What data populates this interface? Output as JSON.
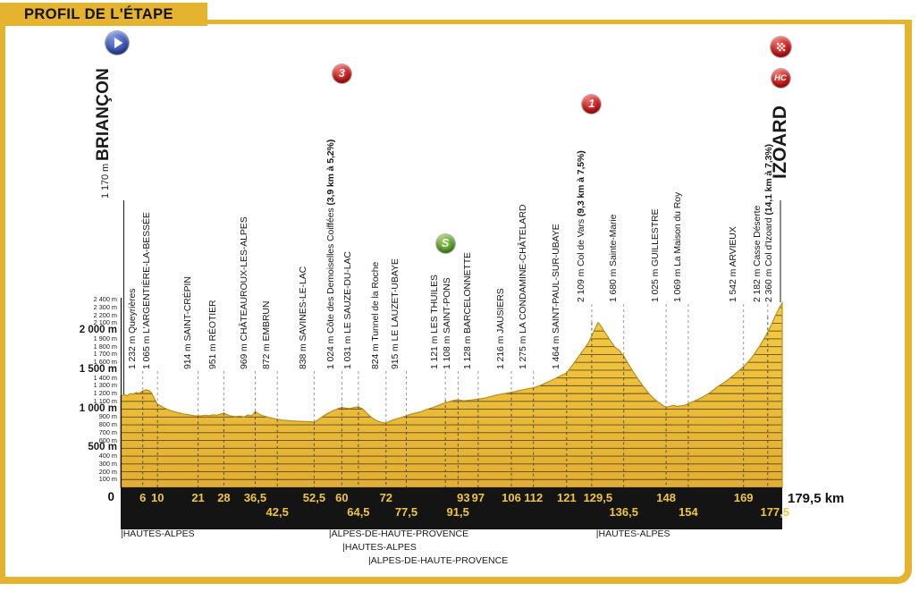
{
  "page_title": "PROFIL DE L'ÉTAPE",
  "colors": {
    "accent_yellow": "#E6B32E",
    "profile_yellow": "#F2C83E",
    "bar_black": "#141414",
    "km_label_yellow": "#F0C63C",
    "badge_red": "#C8191B",
    "badge_green": "#61A22F",
    "badge_blue": "#3A57B5"
  },
  "start": {
    "km_label": "0",
    "km": 0,
    "elevation_m": 1170,
    "elevation_label": "1 170 m",
    "name": "BRIANÇON",
    "icon": "start-play-badge"
  },
  "finish": {
    "big_label": "IZOARD",
    "total_label": "179,5 km",
    "icons": [
      "finish-checkered-flag-badge",
      "hors-categorie-badge"
    ],
    "hc_label": "HC"
  },
  "badge_labels": {
    "cat3": "3",
    "cat1": "1",
    "sprint": "S",
    "hc": "HC"
  },
  "chart_data": {
    "type": "area",
    "title": "PROFIL DE L'ÉTAPE — Briançon → Izoard",
    "x_unit": "km",
    "y_unit": "m",
    "xlim": [
      0,
      179.5
    ],
    "ylim": [
      0,
      2400
    ],
    "grid": "horizontal-inside-profile",
    "y_tick_labels": [
      "100 m",
      "200 m",
      "300 m",
      "400 m",
      "500 m",
      "600 m",
      "700 m",
      "800 m",
      "900 m",
      "1 000 m",
      "1 100 m",
      "1 200 m",
      "1 300 m",
      "1 400 m",
      "1 500 m",
      "1 600 m",
      "1 700 m",
      "1 800 m",
      "1 900 m",
      "2 000 m",
      "2 100 m",
      "2 200 m",
      "2 300 m",
      "2 400 m"
    ],
    "waypoints": [
      {
        "km": 6,
        "elev": 1232,
        "elev_label": "1 232 m",
        "name": "Queyrières",
        "tier": "A",
        "km_label": "6",
        "km_row": 1
      },
      {
        "km": 10,
        "elev": 1065,
        "elev_label": "1 065 m",
        "name": "L'ARGENTIÈRE-LA-BESSÉE",
        "tier": "A",
        "km_label": "10",
        "km_row": 1
      },
      {
        "km": 21,
        "elev": 914,
        "elev_label": "914 m",
        "name": "SAINT-CRÉPIN",
        "tier": "A",
        "km_label": "21",
        "km_row": 1
      },
      {
        "km": 28,
        "elev": 951,
        "elev_label": "951 m",
        "name": "RÉOTIER",
        "tier": "A",
        "km_label": "28",
        "km_row": 1
      },
      {
        "km": 36.5,
        "elev": 969,
        "elev_label": "969 m",
        "name": "CHÂTEAUROUX-LES-ALPES",
        "tier": "A",
        "km_label": "36,5",
        "km_row": 1
      },
      {
        "km": 42.5,
        "elev": 872,
        "elev_label": "872 m",
        "name": "EMBRUN",
        "tier": "A",
        "km_label": "42,5",
        "km_row": 2
      },
      {
        "km": 52.5,
        "elev": 838,
        "elev_label": "838 m",
        "name": "SAVINES-LE-LAC",
        "tier": "A",
        "km_label": "52,5",
        "km_row": 1
      },
      {
        "km": 60,
        "elev": 1024,
        "elev_label": "1 024 m",
        "name": "Côte des Demoiselles Coiffées",
        "climb": "(3,9 km à 5,2%)",
        "badge": "cat3",
        "badge_y": 82,
        "tier": "A",
        "km_label": "60",
        "km_row": 1
      },
      {
        "km": 64.5,
        "elev": 1031,
        "elev_label": "1 031 m",
        "name": "LE SAUZE-DU-LAC",
        "tier": "A",
        "km_label": "64,5",
        "km_row": 2
      },
      {
        "km": 72,
        "elev": 824,
        "elev_label": "824 m",
        "name": "Tunnel de la Roche",
        "tier": "A",
        "km_label": "72",
        "km_row": 1
      },
      {
        "km": 77.5,
        "elev": 915,
        "elev_label": "915 m",
        "name": "LE LAUZET-UBAYE",
        "tier": "A",
        "km_label": "77,5",
        "km_row": 2
      },
      {
        "km": 91.5,
        "elev": 1121,
        "elev_label": "1 121 m",
        "name": "LES THUILES",
        "badge": "sprint",
        "badge_y": 272,
        "dx": -14,
        "tier": "A",
        "km_label": "91,5",
        "km_row": 2
      },
      {
        "km": 93,
        "elev": 1108,
        "elev_label": "1 108 m",
        "name": "SAINT-PONS",
        "dx": -6,
        "tier": "A",
        "km_label": "93",
        "km_row": 1
      },
      {
        "km": 97,
        "elev": 1128,
        "elev_label": "1 128 m",
        "name": "BARCELONNETTE",
        "tier": "A",
        "km_label": "97",
        "km_row": 1
      },
      {
        "km": 106,
        "elev": 1216,
        "elev_label": "1 216 m",
        "name": "JAUSIERS",
        "tier": "A",
        "km_label": "106",
        "km_row": 1
      },
      {
        "km": 112,
        "elev": 1275,
        "elev_label": "1 275 m",
        "name": "LA CONDAMINE-CHÂTELARD",
        "tier": "A",
        "km_label": "112",
        "km_row": 1
      },
      {
        "km": 121,
        "elev": 1464,
        "elev_label": "1 464 m",
        "name": "SAINT-PAUL-SUR-UBAYE",
        "tier": "A",
        "km_label": "121",
        "km_row": 1
      },
      {
        "km": 129.5,
        "elev": 2109,
        "elev_label": "2 109 m",
        "name": "Col de Vars",
        "climb": "(9,3 km à 7,5%)",
        "badge": "cat1",
        "badge_y": 116,
        "dx": -7,
        "tier": "B",
        "km_label": "129,5",
        "km_row": 1
      },
      {
        "km": 136.5,
        "elev": 1680,
        "elev_label": "1 680 m",
        "name": "Sainte-Marie",
        "tier": "B",
        "km_label": "136,5",
        "km_row": 2
      },
      {
        "km": 148,
        "elev": 1025,
        "elev_label": "1 025 m",
        "name": "GUILLESTRE",
        "tier": "B",
        "km_label": "148",
        "km_row": 1
      },
      {
        "km": 154,
        "elev": 1069,
        "elev_label": "1 069 m",
        "name": "La Maison du Roy",
        "tier": "B",
        "km_label": "154",
        "km_row": 2
      },
      {
        "km": 169,
        "elev": 1542,
        "elev_label": "1 542 m",
        "name": "ARVIEUX",
        "tier": "B",
        "km_label": "169",
        "km_row": 1
      },
      {
        "km": 177.5,
        "elev": 2182,
        "elev_label": "2 182 m",
        "name": "Casse Déserte",
        "dx": -8,
        "tier": "B",
        "km_label": "177,5",
        "km_row": 2
      },
      {
        "km": 179.5,
        "elev": 2360,
        "elev_label": "2 360 m",
        "name": "Col d'Izoard",
        "climb": "(14,1 km à 7,3%)",
        "dx": -3,
        "tier": "B",
        "no_dash": true
      }
    ],
    "profile_points": [
      [
        0,
        1170
      ],
      [
        1,
        1185
      ],
      [
        1.8,
        1172
      ],
      [
        2.6,
        1200
      ],
      [
        3.4,
        1193
      ],
      [
        4.2,
        1213
      ],
      [
        5,
        1205
      ],
      [
        6,
        1232
      ],
      [
        6.8,
        1247
      ],
      [
        7.6,
        1242
      ],
      [
        8.4,
        1208
      ],
      [
        9.2,
        1130
      ],
      [
        10,
        1065
      ],
      [
        11,
        1040
      ],
      [
        12,
        1012
      ],
      [
        13,
        992
      ],
      [
        14,
        976
      ],
      [
        15.5,
        955
      ],
      [
        17,
        940
      ],
      [
        18.5,
        928
      ],
      [
        20,
        918
      ],
      [
        21,
        914
      ],
      [
        22,
        916
      ],
      [
        23,
        923
      ],
      [
        24,
        916
      ],
      [
        25,
        928
      ],
      [
        26,
        922
      ],
      [
        27,
        936
      ],
      [
        28,
        951
      ],
      [
        28.8,
        933
      ],
      [
        29.6,
        916
      ],
      [
        31,
        905
      ],
      [
        32.5,
        912
      ],
      [
        33.5,
        900
      ],
      [
        34.5,
        928
      ],
      [
        35.5,
        914
      ],
      [
        36.5,
        969
      ],
      [
        37.5,
        938
      ],
      [
        38.5,
        918
      ],
      [
        40,
        898
      ],
      [
        41.2,
        884
      ],
      [
        42.5,
        872
      ],
      [
        44,
        860
      ],
      [
        45.5,
        853
      ],
      [
        47,
        849
      ],
      [
        48.5,
        846
      ],
      [
        50,
        842
      ],
      [
        51.2,
        840
      ],
      [
        52.5,
        838
      ],
      [
        53.5,
        862
      ],
      [
        54.5,
        898
      ],
      [
        56,
        942
      ],
      [
        57.5,
        978
      ],
      [
        59,
        1008
      ],
      [
        60,
        1024
      ],
      [
        61,
        1015
      ],
      [
        62,
        1008
      ],
      [
        63,
        1018
      ],
      [
        64.5,
        1031
      ],
      [
        65.5,
        1008
      ],
      [
        66.5,
        962
      ],
      [
        67.5,
        918
      ],
      [
        68.5,
        880
      ],
      [
        69.5,
        852
      ],
      [
        70.5,
        836
      ],
      [
        71.2,
        828
      ],
      [
        72,
        824
      ],
      [
        72.8,
        842
      ],
      [
        74,
        864
      ],
      [
        75.5,
        886
      ],
      [
        76.5,
        900
      ],
      [
        77.5,
        915
      ],
      [
        78.5,
        932
      ],
      [
        80,
        952
      ],
      [
        81.5,
        968
      ],
      [
        83,
        996
      ],
      [
        84.5,
        1020
      ],
      [
        86,
        1046
      ],
      [
        87.5,
        1072
      ],
      [
        89,
        1096
      ],
      [
        90.2,
        1110
      ],
      [
        91.5,
        1121
      ],
      [
        92.2,
        1114
      ],
      [
        93,
        1108
      ],
      [
        94,
        1112
      ],
      [
        95.5,
        1120
      ],
      [
        97,
        1128
      ],
      [
        98.5,
        1140
      ],
      [
        100,
        1158
      ],
      [
        101.5,
        1176
      ],
      [
        103,
        1192
      ],
      [
        104.5,
        1204
      ],
      [
        106,
        1216
      ],
      [
        107.5,
        1232
      ],
      [
        109,
        1248
      ],
      [
        110.5,
        1262
      ],
      [
        112,
        1275
      ],
      [
        113.5,
        1298
      ],
      [
        115,
        1328
      ],
      [
        116.5,
        1360
      ],
      [
        118,
        1396
      ],
      [
        119.5,
        1430
      ],
      [
        121,
        1464
      ],
      [
        122,
        1530
      ],
      [
        123,
        1592
      ],
      [
        124,
        1656
      ],
      [
        125,
        1722
      ],
      [
        126,
        1788
      ],
      [
        127,
        1856
      ],
      [
        128,
        1960
      ],
      [
        128.8,
        2040
      ],
      [
        129.5,
        2109
      ],
      [
        130.2,
        2072
      ],
      [
        131,
        2010
      ],
      [
        132,
        1940
      ],
      [
        133,
        1868
      ],
      [
        134,
        1800
      ],
      [
        135.2,
        1755
      ],
      [
        136.5,
        1680
      ],
      [
        137.5,
        1598
      ],
      [
        138.5,
        1520
      ],
      [
        139.5,
        1448
      ],
      [
        140.5,
        1378
      ],
      [
        141.5,
        1310
      ],
      [
        142.5,
        1248
      ],
      [
        143.5,
        1192
      ],
      [
        144.5,
        1144
      ],
      [
        145.5,
        1104
      ],
      [
        146.5,
        1070
      ],
      [
        147.2,
        1045
      ],
      [
        148,
        1025
      ],
      [
        149,
        1038
      ],
      [
        150,
        1048
      ],
      [
        151,
        1035
      ],
      [
        152,
        1042
      ],
      [
        153,
        1052
      ],
      [
        154,
        1069
      ],
      [
        155,
        1092
      ],
      [
        156,
        1112
      ],
      [
        157,
        1134
      ],
      [
        158,
        1158
      ],
      [
        159,
        1186
      ],
      [
        160,
        1216
      ],
      [
        161,
        1252
      ],
      [
        162,
        1292
      ],
      [
        163,
        1318
      ],
      [
        164,
        1348
      ],
      [
        165,
        1384
      ],
      [
        166,
        1422
      ],
      [
        167,
        1462
      ],
      [
        168,
        1502
      ],
      [
        169,
        1542
      ],
      [
        170,
        1592
      ],
      [
        171,
        1648
      ],
      [
        172,
        1712
      ],
      [
        173,
        1780
      ],
      [
        174,
        1856
      ],
      [
        175,
        1938
      ],
      [
        176,
        2028
      ],
      [
        176.8,
        2108
      ],
      [
        177.5,
        2182
      ],
      [
        178.2,
        2248
      ],
      [
        178.8,
        2304
      ],
      [
        179.5,
        2360
      ]
    ],
    "regions": [
      {
        "label": "|HAUTES-ALPES",
        "x_km": 0,
        "row": 1
      },
      {
        "label": "|ALPES-DE-HAUTE-PROVENCE",
        "x_km": 56.5,
        "row": 1
      },
      {
        "label": "|HAUTES-ALPES",
        "x_km": 60.2,
        "row": 2
      },
      {
        "label": "|ALPES-DE-HAUTE-PROVENCE",
        "x_km": 67.2,
        "row": 3
      },
      {
        "label": "|HAUTES-ALPES",
        "x_km": 129,
        "row": 1
      }
    ]
  }
}
